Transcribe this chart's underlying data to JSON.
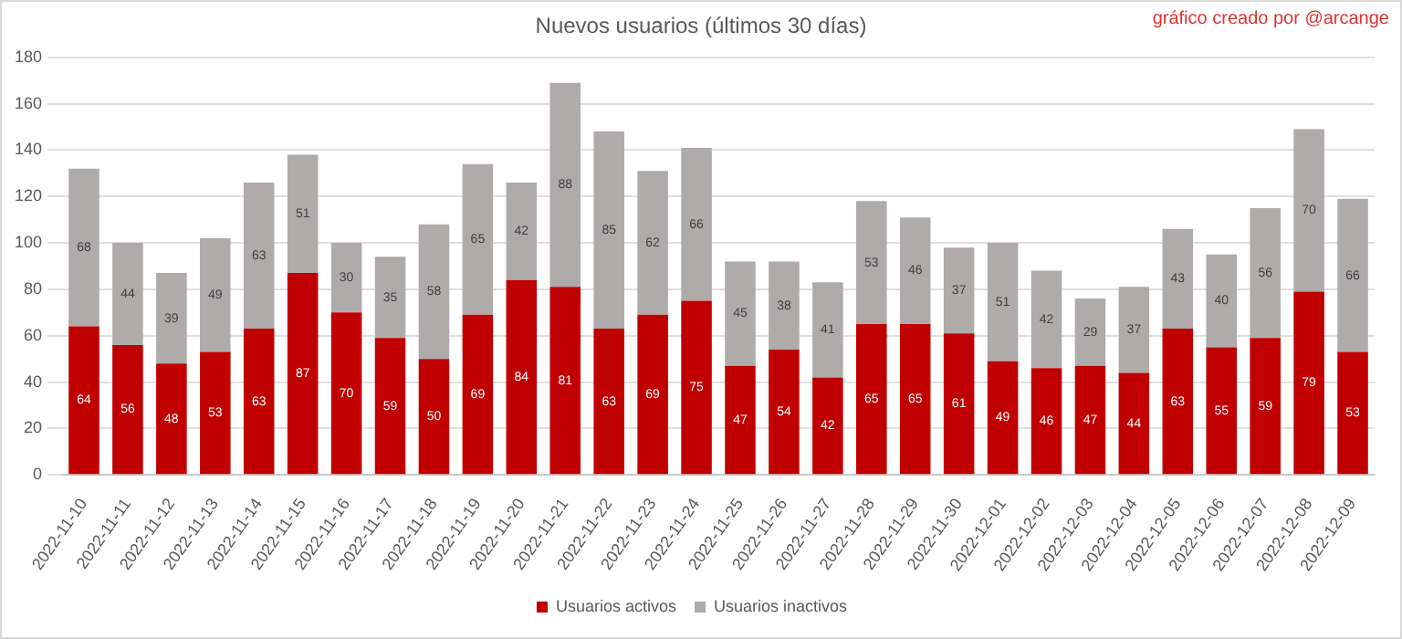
{
  "chart_data": {
    "type": "bar",
    "title": "Nuevos usuarios (últimos 30 días)",
    "annotations": [
      "gráfico creado por @arcange"
    ],
    "categories": [
      "2022-11-10",
      "2022-11-11",
      "2022-11-12",
      "2022-11-13",
      "2022-11-14",
      "2022-11-15",
      "2022-11-16",
      "2022-11-17",
      "2022-11-18",
      "2022-11-19",
      "2022-11-20",
      "2022-11-21",
      "2022-11-22",
      "2022-11-23",
      "2022-11-24",
      "2022-11-25",
      "2022-11-26",
      "2022-11-27",
      "2022-11-28",
      "2022-11-29",
      "2022-11-30",
      "2022-12-01",
      "2022-12-02",
      "2022-12-03",
      "2022-12-04",
      "2022-12-05",
      "2022-12-06",
      "2022-12-07",
      "2022-12-08",
      "2022-12-09"
    ],
    "series": [
      {
        "name": "Usuarios activos",
        "color": "#c00000",
        "values": [
          64,
          56,
          48,
          53,
          63,
          87,
          70,
          59,
          50,
          69,
          84,
          81,
          63,
          69,
          75,
          47,
          54,
          42,
          65,
          65,
          61,
          49,
          46,
          47,
          44,
          63,
          55,
          59,
          79,
          53
        ]
      },
      {
        "name": "Usuarios inactivos",
        "color": "#afabab",
        "values": [
          68,
          44,
          39,
          49,
          63,
          51,
          30,
          35,
          58,
          65,
          42,
          88,
          85,
          62,
          66,
          45,
          38,
          41,
          53,
          46,
          37,
          51,
          42,
          29,
          37,
          43,
          40,
          56,
          70,
          66
        ]
      }
    ],
    "stacked": true,
    "ylim": [
      0,
      180
    ],
    "yticks": [
      0,
      20,
      40,
      60,
      80,
      100,
      120,
      140,
      160,
      180
    ],
    "grid": "y",
    "legend": "bottom",
    "data_labels": true
  }
}
